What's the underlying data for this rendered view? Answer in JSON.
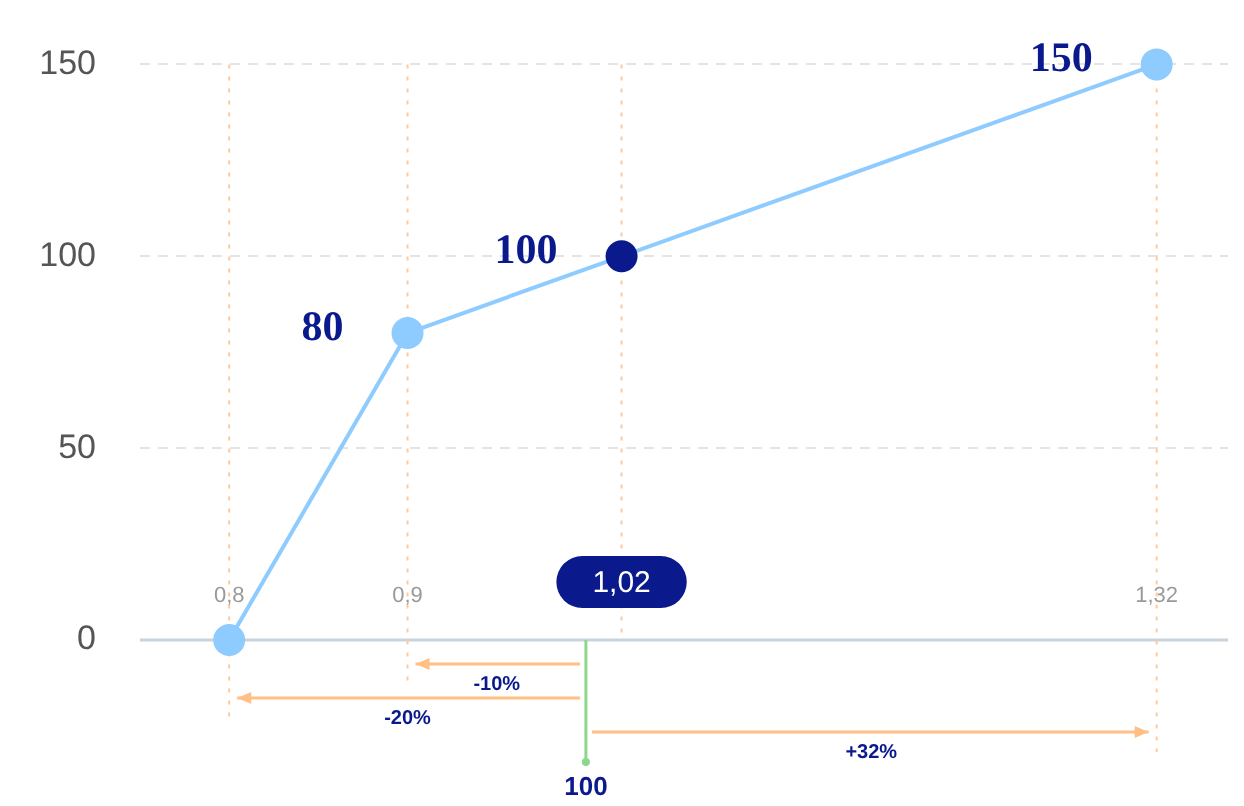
{
  "chart_data": {
    "type": "line",
    "x": [
      0.8,
      0.9,
      1.02,
      1.32
    ],
    "values": [
      0,
      80,
      100,
      150
    ],
    "color": "#8ecbff",
    "colors": [
      "#8ecbff",
      "#8ecbff",
      "#0a1a8c",
      "#8ecbff"
    ],
    "value_labels": [
      null,
      "80",
      "100",
      "150"
    ],
    "xlim": [
      0.75,
      1.36
    ],
    "xticks": [
      {
        "value": 0.8,
        "label": "0,8"
      },
      {
        "value": 0.9,
        "label": "0,9"
      },
      {
        "value": 1.02,
        "label": "1,02"
      },
      {
        "value": 1.32,
        "label": "1,32"
      }
    ],
    "ylim": [
      0,
      150
    ],
    "yticks": [
      0,
      50,
      100,
      150
    ],
    "grid": "y",
    "marker": "circle",
    "line_style": "solid",
    "ref_lines": [
      {
        "axis": "x",
        "value": 1,
        "label": "100",
        "color": "#8bd88b",
        "line_style": "solid"
      },
      {
        "axis": "x",
        "value": 0.8,
        "color": "#ffc99a",
        "line_style": "dotted"
      },
      {
        "axis": "x",
        "value": 0.9,
        "color": "#ffc99a",
        "line_style": "dotted"
      },
      {
        "axis": "x",
        "value": 1.02,
        "color": "#ffc99a",
        "line_style": "dotted"
      },
      {
        "axis": "x",
        "value": 1.32,
        "color": "#ffc99a",
        "line_style": "dotted"
      }
    ],
    "annotations": [
      "-10%",
      "-20%",
      "+32%"
    ]
  }
}
